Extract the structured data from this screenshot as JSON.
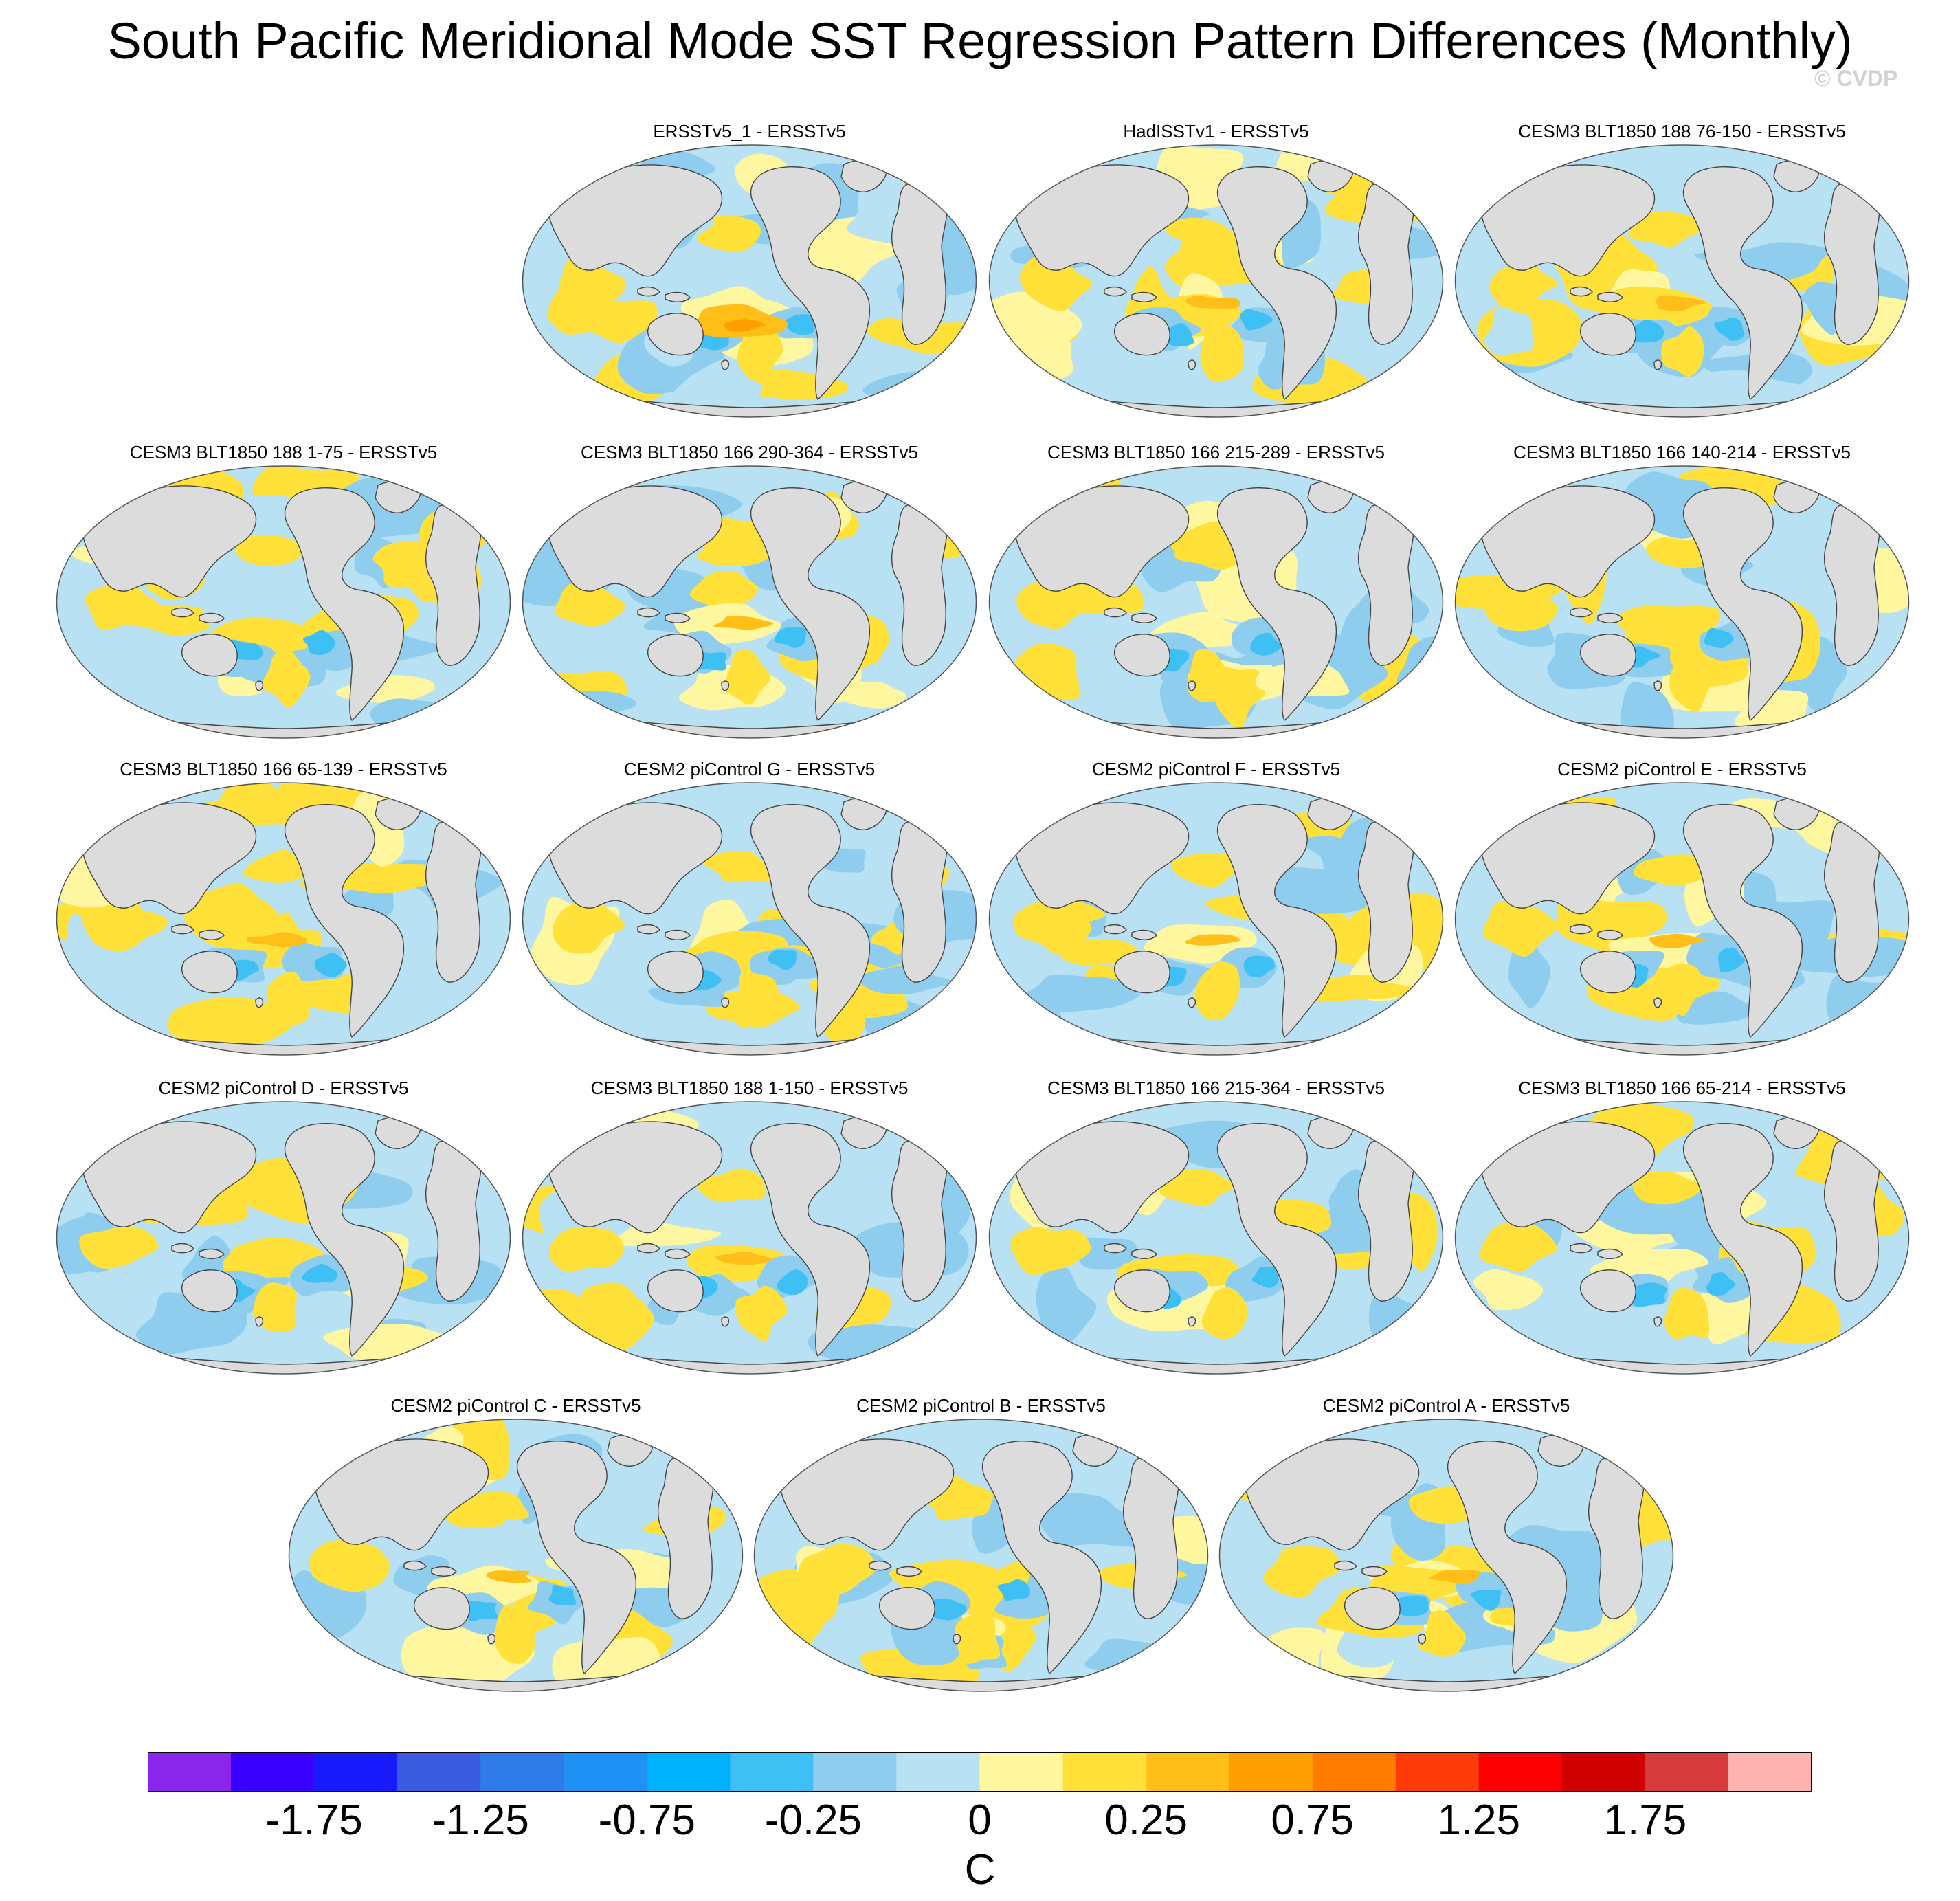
{
  "title": "South Pacific Meridional Mode SST Regression Pattern Differences (Monthly)",
  "credit": "© CVDP",
  "colorbar": {
    "unit": "C",
    "colors": [
      "#8a25ec",
      "#3a00ff",
      "#1a1aff",
      "#3b5ce0",
      "#2f7be8",
      "#1f91f5",
      "#00b2fe",
      "#3ec0f5",
      "#8fcdef",
      "#b8e1f4",
      "#fff7a0",
      "#ffe13a",
      "#ffbf18",
      "#ffa000",
      "#ff7c00",
      "#ff3b0a",
      "#fb0000",
      "#d10000",
      "#d63c3c",
      "#ffb4b4"
    ],
    "tick_labels": [
      "-1.75",
      "-1.25",
      "-0.75",
      "-0.25",
      "0",
      "0.25",
      "0.75",
      "1.25",
      "1.75"
    ]
  },
  "colors": {
    "land": "#dcdcdc",
    "coast": "#444444",
    "ocean_neg_weak": "#b8e1f4",
    "ocean_neg_mid": "#8fcdef",
    "ocean_neg_strong": "#3ec0f5",
    "ocean_pos_weak": "#fff7a0",
    "ocean_pos_mid": "#ffe13a",
    "ocean_pos_strong": "#ffbf18",
    "ocean_pos_max": "#ffa000"
  },
  "panels": [
    {
      "title": "ERSSTv5_1 - ERSSTv5"
    },
    {
      "title": "HadISSTv1 - ERSSTv5"
    },
    {
      "title": "CESM3 BLT1850 188 76-150 - ERSSTv5"
    },
    {
      "title": "CESM3 BLT1850 188 1-75 - ERSSTv5"
    },
    {
      "title": "CESM3 BLT1850 166 290-364 - ERSSTv5"
    },
    {
      "title": "CESM3 BLT1850 166 215-289 - ERSSTv5"
    },
    {
      "title": "CESM3 BLT1850 166 140-214 - ERSSTv5"
    },
    {
      "title": "CESM3 BLT1850 166 65-139 - ERSSTv5"
    },
    {
      "title": "CESM2 piControl G - ERSSTv5"
    },
    {
      "title": "CESM2 piControl F - ERSSTv5"
    },
    {
      "title": "CESM2 piControl E - ERSSTv5"
    },
    {
      "title": "CESM2 piControl D - ERSSTv5"
    },
    {
      "title": "CESM3 BLT1850 188 1-150 - ERSSTv5"
    },
    {
      "title": "CESM3 BLT1850 166 215-364 - ERSSTv5"
    },
    {
      "title": "CESM3 BLT1850 166 65-214 - ERSSTv5"
    },
    {
      "title": "CESM2 piControl C - ERSSTv5"
    },
    {
      "title": "CESM2 piControl B - ERSSTv5"
    },
    {
      "title": "CESM2 piControl A - ERSSTv5"
    }
  ]
}
